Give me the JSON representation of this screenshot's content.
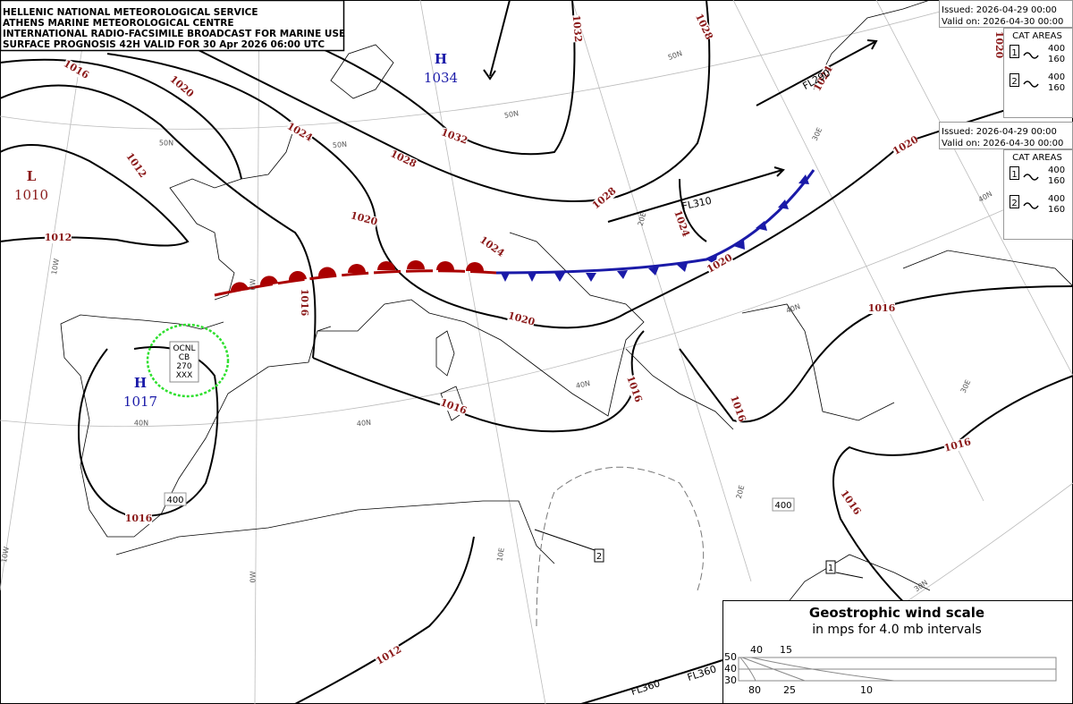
{
  "header": {
    "lines": [
      "HELLENIC NATIONAL METEOROLOGICAL SERVICE",
      "ATHENS MARINE METEOROLOGICAL CENTRE",
      "INTERNATIONAL RADIO-FACSIMILE BROADCAST FOR MARINE USE",
      "SURFACE PROGNOSIS 42H VALID FOR 30 Apr 2026 06:00 UTC"
    ]
  },
  "cat_panels": [
    {
      "issued": "Issued: 2026-04-29 00:00",
      "valid": "Valid on: 2026-04-30 00:00",
      "title": "CAT AREAS",
      "items": [
        {
          "id": "1",
          "top": "400",
          "base": "160"
        },
        {
          "id": "2",
          "top": "400",
          "base": "160"
        }
      ]
    },
    {
      "issued": "Issued: 2026-04-29 00:00",
      "valid": "Valid on: 2026-04-30 00:00",
      "title": "CAT AREAS",
      "items": [
        {
          "id": "1",
          "top": "400",
          "base": "160"
        },
        {
          "id": "2",
          "top": "400",
          "base": "160"
        }
      ]
    }
  ],
  "pressure_centers": [
    {
      "type": "H",
      "value": "1034"
    },
    {
      "type": "L",
      "value": "1010"
    },
    {
      "type": "H",
      "value": "1017"
    }
  ],
  "isobar_labels": [
    "1016",
    "1020",
    "1024",
    "1028",
    "1032",
    "1032",
    "1028",
    "1020",
    "1012",
    "1012",
    "1020",
    "1024",
    "1028",
    "1024",
    "1020",
    "1020",
    "1016",
    "1020",
    "1016",
    "1016",
    "1016",
    "1016",
    "1016",
    "1016",
    "1016",
    "1012",
    "1024"
  ],
  "graticule_labels": [
    "50N",
    "50N",
    "50N",
    "50N",
    "40N",
    "40N",
    "40N",
    "40N",
    "40N",
    "30N",
    "10W",
    "10W",
    "0W",
    "0W",
    "10E",
    "20E",
    "20E",
    "30E",
    "30E"
  ],
  "flight_levels": [
    "FL290",
    "FL310",
    "FL360",
    "FL360"
  ],
  "cb_area": [
    "OCNL",
    "CB",
    "270",
    "XXX"
  ],
  "jet_tops": [
    "400",
    "400"
  ],
  "turbulence_areas": [
    "2",
    "1"
  ],
  "wind_scale": {
    "title": "Geostrophic wind scale",
    "subtitle": "in mps for 4.0 mb intervals",
    "latitudes": [
      "50",
      "40",
      "30"
    ],
    "top_speeds": [
      "40",
      "15"
    ],
    "bottom_speeds": [
      "80",
      "25",
      "10"
    ]
  }
}
